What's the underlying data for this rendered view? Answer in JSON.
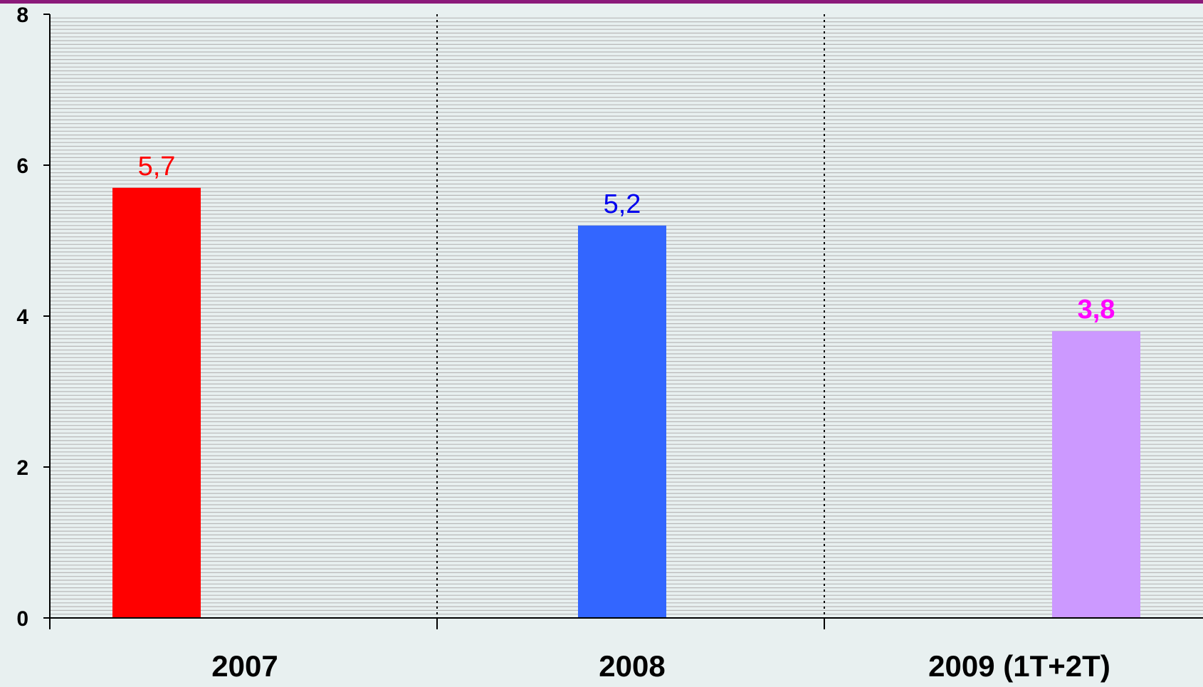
{
  "chart_data": {
    "type": "bar",
    "categories": [
      "2007",
      "2008",
      "2009 (1T+2T)"
    ],
    "values": [
      5.7,
      5.2,
      3.8
    ],
    "data_labels": [
      "5,7",
      "5,2",
      "3,8"
    ],
    "bar_colors": [
      "#ff0000",
      "#3366ff",
      "#cc99ff"
    ],
    "label_colors": [
      "#ff0000",
      "#0000ee",
      "#ff00ff"
    ],
    "label_bold": [
      false,
      false,
      true
    ],
    "y_ticks": [
      "0",
      "2",
      "4",
      "6",
      "8"
    ],
    "ylim": [
      0,
      8
    ],
    "grid": true,
    "title": "",
    "xlabel": "",
    "ylabel": ""
  },
  "colors": {
    "background": "#e8f0f0",
    "top_border": "#8b1a7a",
    "grid_lines": "#b8b8b8",
    "axis": "#000000"
  }
}
